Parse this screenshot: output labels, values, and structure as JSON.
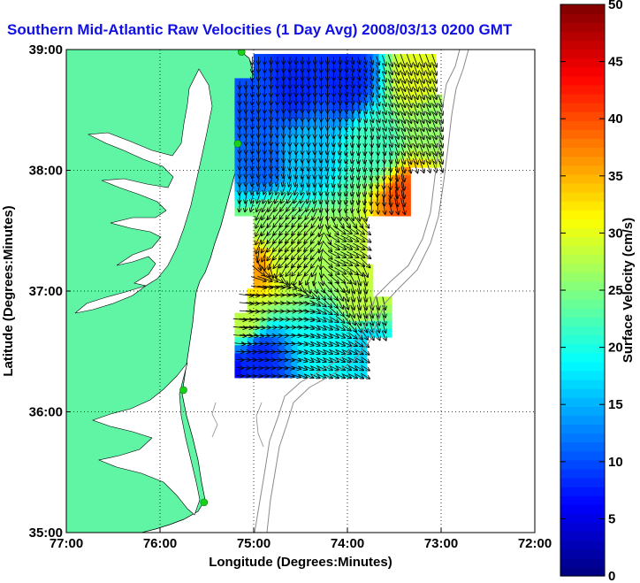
{
  "chart_data": {
    "type": "heatmap",
    "title": "Southern Mid-Atlantic Raw Velocities (1 Day Avg) 2008/03/13 0200 GMT",
    "xlabel": "Longitude (Degrees:Minutes)",
    "ylabel": "Latitude (Degrees:Minutes)",
    "colorbar_label": "Surface Velocity (cm/s)",
    "x_ticks": [
      "77:00",
      "76:00",
      "75:00",
      "74:00",
      "73:00",
      "72:00"
    ],
    "y_ticks": [
      "39:00",
      "38:00",
      "37:00",
      "36:00",
      "35:00"
    ],
    "colorbar_ticks": [
      "0",
      "5",
      "10",
      "15",
      "20",
      "25",
      "30",
      "35",
      "40",
      "45",
      "50"
    ],
    "xlim": [
      -77,
      -72
    ],
    "ylim": [
      35,
      39
    ],
    "clim": [
      0,
      50
    ],
    "grid": true,
    "colors": {
      "land": "#5ff5a4",
      "coast": "#000000",
      "bathymetry": "#8a8a8a",
      "title": "#1010e6",
      "station": "#19d119",
      "grid": "#000000"
    },
    "stations": [
      {
        "lon": -75.13,
        "lat": 38.98
      },
      {
        "lon": -75.17,
        "lat": 38.22
      },
      {
        "lon": -75.75,
        "lat": 36.18
      },
      {
        "lon": -75.53,
        "lat": 35.25
      }
    ],
    "velocity_field": {
      "lon_min": -75.17,
      "lon_max": -73.0,
      "lat_min": 36.27,
      "lat_max": 38.93,
      "dlon": 0.067,
      "dlat": 0.067,
      "speed_regions": [
        {
          "lon": -74.95,
          "lat": 38.6,
          "speed": 10
        },
        {
          "lon": -74.6,
          "lat": 38.7,
          "speed": 8
        },
        {
          "lon": -74.0,
          "lat": 38.75,
          "speed": 8
        },
        {
          "lon": -73.25,
          "lat": 38.75,
          "speed": 30
        },
        {
          "lon": -73.1,
          "lat": 38.4,
          "speed": 26
        },
        {
          "lon": -74.9,
          "lat": 38.05,
          "speed": 11
        },
        {
          "lon": -74.45,
          "lat": 38.1,
          "speed": 16
        },
        {
          "lon": -73.7,
          "lat": 38.2,
          "speed": 22
        },
        {
          "lon": -73.35,
          "lat": 37.75,
          "speed": 40
        },
        {
          "lon": -74.8,
          "lat": 37.55,
          "speed": 26
        },
        {
          "lon": -74.3,
          "lat": 37.35,
          "speed": 27
        },
        {
          "lon": -73.6,
          "lat": 37.15,
          "speed": 29
        },
        {
          "lon": -75.0,
          "lat": 37.2,
          "speed": 36
        },
        {
          "lon": -74.6,
          "lat": 37.25,
          "speed": 28
        },
        {
          "lon": -73.85,
          "lat": 36.9,
          "speed": 28
        },
        {
          "lon": -74.2,
          "lat": 36.6,
          "speed": 19
        },
        {
          "lon": -75.1,
          "lat": 36.75,
          "speed": 28
        },
        {
          "lon": -74.95,
          "lat": 36.45,
          "speed": 8
        },
        {
          "lon": -75.3,
          "lat": 36.35,
          "speed": 6
        },
        {
          "lon": -73.8,
          "lat": 36.55,
          "speed": 17
        }
      ],
      "flow": [
        {
          "lon": -74.6,
          "lat": 38.5,
          "u": -0.05,
          "v": -1.0
        },
        {
          "lon": -73.4,
          "lat": 38.5,
          "u": 0.35,
          "v": -0.95
        },
        {
          "lon": -74.0,
          "lat": 37.9,
          "u": -0.2,
          "v": -1.0
        },
        {
          "lon": -74.5,
          "lat": 37.35,
          "u": -0.7,
          "v": -0.7
        },
        {
          "lon": -74.0,
          "lat": 37.3,
          "u": 0.9,
          "v": -0.45
        },
        {
          "lon": -73.8,
          "lat": 37.0,
          "u": 0.2,
          "v": -1.0
        },
        {
          "lon": -74.7,
          "lat": 36.8,
          "u": 1.0,
          "v": 0.0
        },
        {
          "lon": -75.0,
          "lat": 36.5,
          "u": 0.95,
          "v": -0.1
        },
        {
          "lon": -74.2,
          "lat": 36.5,
          "u": 0.9,
          "v": -0.4
        }
      ]
    }
  }
}
